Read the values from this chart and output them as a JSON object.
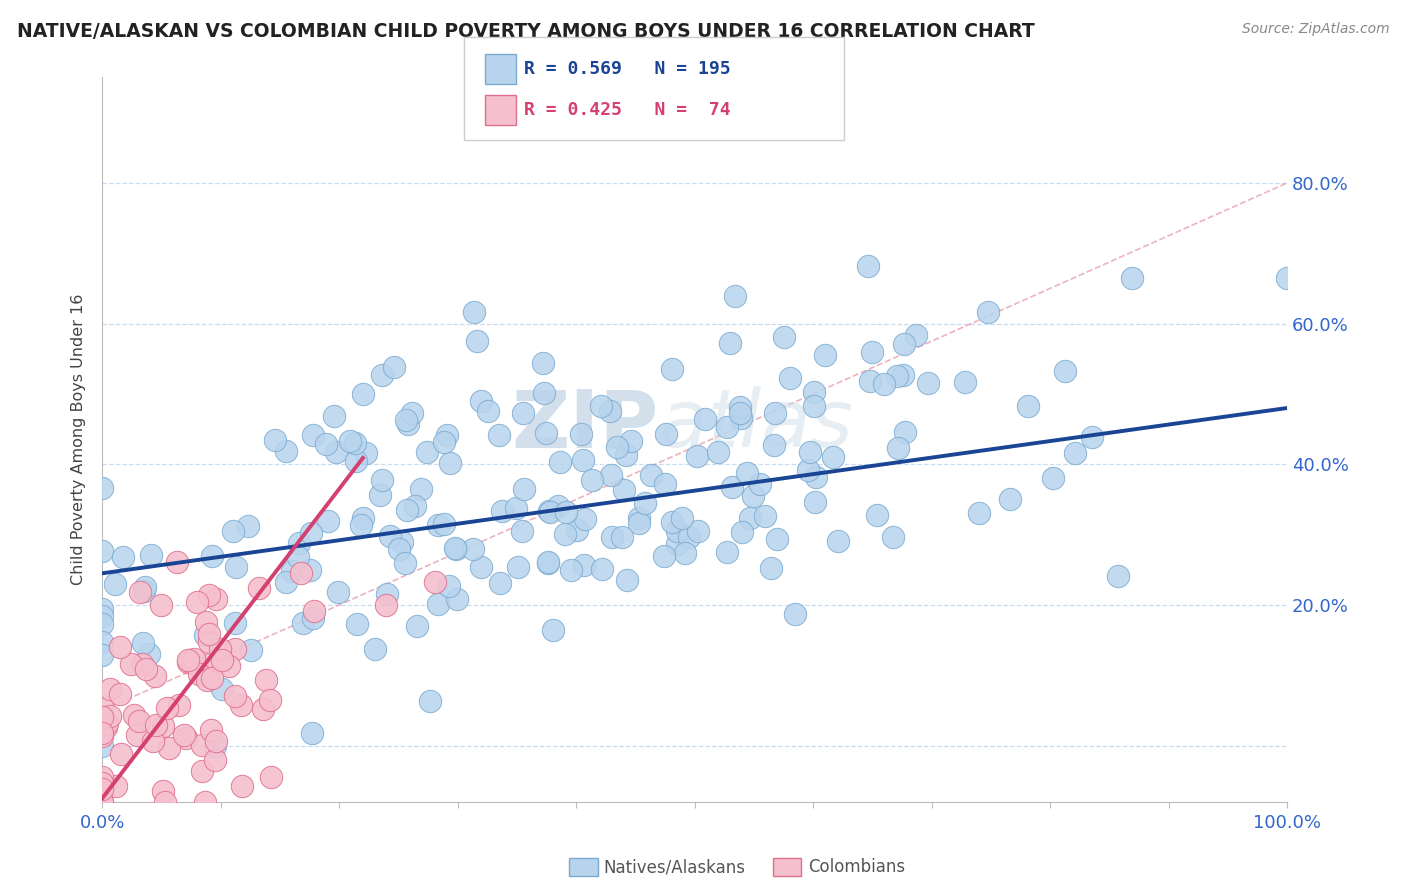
{
  "title": "NATIVE/ALASKAN VS COLOMBIAN CHILD POVERTY AMONG BOYS UNDER 16 CORRELATION CHART",
  "source": "Source: ZipAtlas.com",
  "ylabel": "Child Poverty Among Boys Under 16",
  "xlim": [
    0,
    1.0
  ],
  "ylim": [
    -0.08,
    0.95
  ],
  "native_R": 0.569,
  "native_N": 195,
  "colombian_R": 0.425,
  "colombian_N": 74,
  "native_color": "#b8d4ed",
  "native_edge_color": "#7aaad0",
  "native_line_color": "#1a4494",
  "native_line_intercept": 0.245,
  "native_line_slope": 0.235,
  "colombian_color": "#f5bfce",
  "colombian_edge_color": "#e07090",
  "colombian_line_color": "#d44070",
  "colombian_line_intercept": -0.075,
  "colombian_line_slope": 2.2,
  "ref_line_color": "#e8a0b0",
  "ref_line_style": "--",
  "background_color": "#ffffff",
  "grid_color": "#c8ddf0",
  "title_color": "#222222",
  "axis_label_color": "#3366cc",
  "watermark_zip": "ZIP",
  "watermark_atlas": "atlas",
  "watermark_color": "#c8dae8",
  "legend_label1": "Natives/Alaskans",
  "legend_label2": "Colombians"
}
